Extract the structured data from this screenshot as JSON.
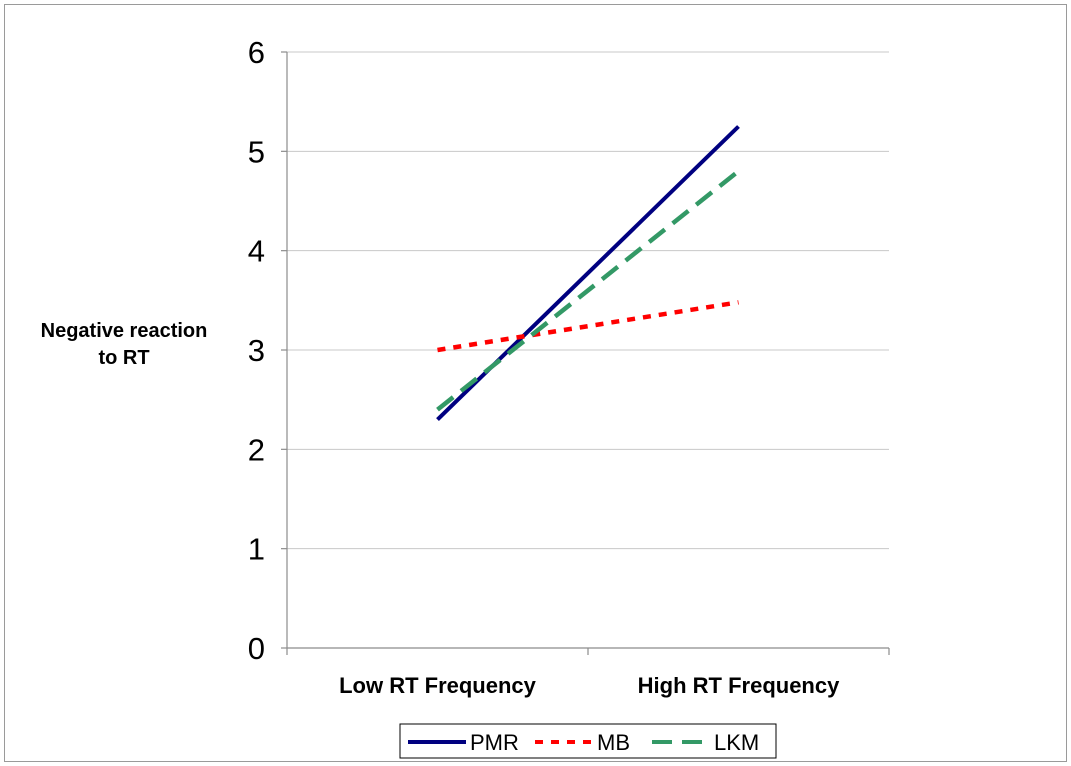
{
  "chart_data": {
    "type": "line",
    "categories": [
      "Low RT Frequency",
      "High RT Frequency"
    ],
    "series": [
      {
        "name": "PMR",
        "values": [
          2.3,
          5.25
        ],
        "color": "#000080",
        "dash": "solid"
      },
      {
        "name": "MB",
        "values": [
          3.0,
          3.48
        ],
        "color": "#ff0000",
        "dash": "dotted"
      },
      {
        "name": "LKM",
        "values": [
          2.4,
          4.8
        ],
        "color": "#339966",
        "dash": "dashed"
      }
    ],
    "ylabel_lines": [
      "Negative reaction",
      "to RT"
    ],
    "ylim": [
      0,
      6
    ],
    "yticks": [
      0,
      1,
      2,
      3,
      4,
      5,
      6
    ],
    "ytick_labels": [
      "0",
      "1",
      "2",
      "3",
      "4",
      "5",
      "6"
    ],
    "grid": true,
    "legend_position": "bottom"
  }
}
